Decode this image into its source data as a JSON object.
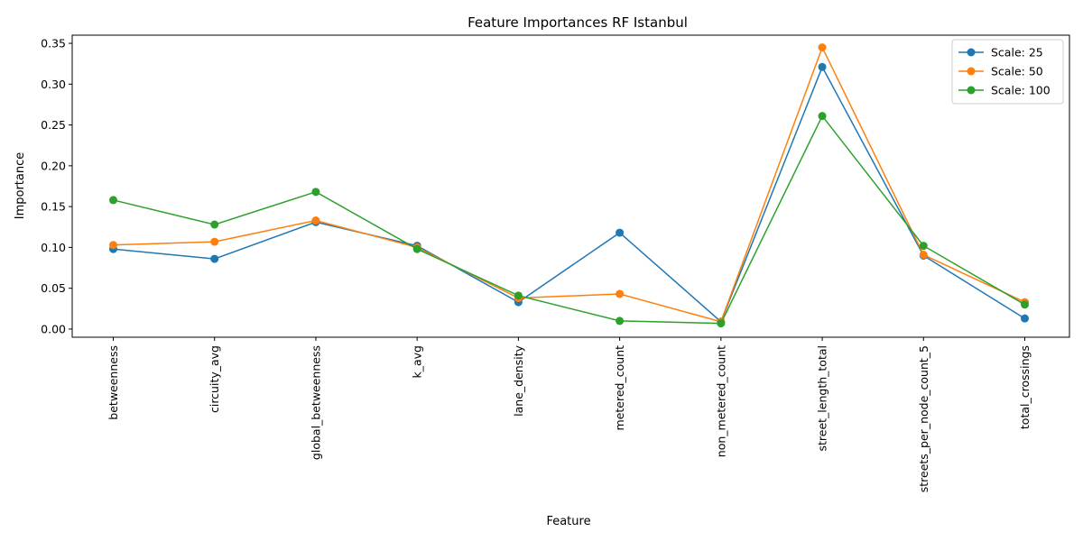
{
  "chart_data": {
    "type": "line",
    "title": "Feature Importances RF Istanbul",
    "xlabel": "Feature",
    "ylabel": "Importance",
    "categories": [
      "betweenness",
      "circuity_avg",
      "global_betweenness",
      "k_avg",
      "lane_density",
      "metered_count",
      "non_metered_count",
      "street_length_total",
      "streets_per_node_count_5",
      "total_crossings"
    ],
    "ylim": [
      -0.01,
      0.36
    ],
    "yticks": [
      0.0,
      0.05,
      0.1,
      0.15,
      0.2,
      0.25,
      0.3,
      0.35
    ],
    "ytick_labels": [
      "0.00",
      "0.05",
      "0.10",
      "0.15",
      "0.20",
      "0.25",
      "0.30",
      "0.35"
    ],
    "grid": false,
    "legend_position": "top-right",
    "series": [
      {
        "name": "Scale: 25",
        "color": "#1f77b4",
        "values": [
          0.098,
          0.086,
          0.131,
          0.102,
          0.033,
          0.118,
          0.009,
          0.321,
          0.09,
          0.013
        ]
      },
      {
        "name": "Scale: 50",
        "color": "#ff7f0e",
        "values": [
          0.103,
          0.107,
          0.133,
          0.1,
          0.038,
          0.043,
          0.009,
          0.345,
          0.091,
          0.033
        ]
      },
      {
        "name": "Scale: 100",
        "color": "#2ca02c",
        "values": [
          0.158,
          0.128,
          0.168,
          0.098,
          0.041,
          0.01,
          0.007,
          0.261,
          0.102,
          0.03
        ]
      }
    ]
  }
}
